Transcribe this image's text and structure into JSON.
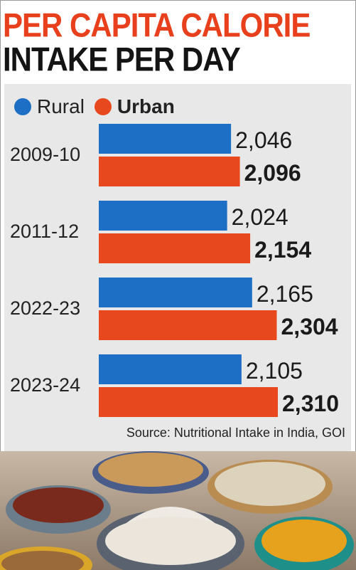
{
  "title": {
    "line1": "PER CAPITA CALORIE",
    "line2": "INTAKE PER DAY"
  },
  "legend": {
    "rural": "Rural",
    "urban": "Urban"
  },
  "source": "Source: Nutritional Intake in India, GOI",
  "colors": {
    "rural": "#1c6fc4",
    "urban": "#e8481e",
    "title_accent": "#e8401c",
    "panel": "#e8e8e8"
  },
  "chart_data": {
    "type": "bar",
    "orientation": "horizontal",
    "title": "PER CAPITA CALORIE INTAKE PER DAY",
    "categories": [
      "2009-10",
      "2011-12",
      "2022-23",
      "2023-24"
    ],
    "series": [
      {
        "name": "Rural",
        "values": [
          2046,
          2024,
          2165,
          2105
        ],
        "labels": [
          "2,046",
          "2,024",
          "2,165",
          "2,105"
        ]
      },
      {
        "name": "Urban",
        "values": [
          2096,
          2154,
          2304,
          2310
        ],
        "labels": [
          "2,096",
          "2,154",
          "2,304",
          "2,310"
        ]
      }
    ],
    "legend": "top-left",
    "grid": false,
    "xlim": [
      0,
      2310
    ]
  }
}
